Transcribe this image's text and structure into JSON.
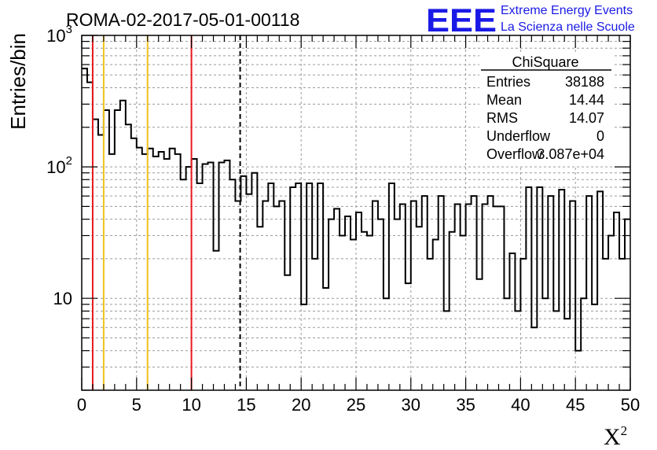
{
  "header": {
    "run_title": "ROMA-02-2017-05-01-00118",
    "logo_text": "EEE",
    "org_line1": "Extreme Energy Events",
    "org_line2": "La Scienza nelle Scuole"
  },
  "stats_box": {
    "title": "ChiSquare",
    "rows": [
      {
        "label": "Entries",
        "value": "38188"
      },
      {
        "label": "Mean",
        "value": "14.44"
      },
      {
        "label": "RMS",
        "value": "14.07"
      },
      {
        "label": "Underflow",
        "value": "0"
      },
      {
        "label": "Overflow",
        "value": "3.087e+04"
      }
    ]
  },
  "colors": {
    "histogram": "#000000",
    "red_line": "#e8191c",
    "yellow_line": "#f2c21b",
    "grid": "#9a9a9a",
    "logo": "#1a1ae6"
  },
  "chart_data": {
    "type": "histogram",
    "title": "ROMA-02-2017-05-01-00118",
    "xlabel": "X",
    "xlabel_superscript": "2",
    "ylabel": "Entries/bin",
    "xlim": [
      0,
      50
    ],
    "ylim": [
      2,
      1000
    ],
    "y_scale": "log",
    "grid": true,
    "x_ticks": [
      0,
      5,
      10,
      15,
      20,
      25,
      30,
      35,
      40,
      45,
      50
    ],
    "x_tick_labels": [
      "0",
      "5",
      "10",
      "15",
      "20",
      "25",
      "30",
      "35",
      "40",
      "45",
      "50"
    ],
    "y_tick_labels": [
      {
        "value": 10,
        "base": "10",
        "exp": ""
      },
      {
        "value": 100,
        "base": "10",
        "exp": "2"
      },
      {
        "value": 1000,
        "base": "10",
        "exp": "3"
      }
    ],
    "bin_width": 0.5,
    "bin_counts": [
      560,
      440,
      230,
      175,
      270,
      125,
      270,
      320,
      210,
      165,
      140,
      125,
      138,
      120,
      130,
      115,
      138,
      125,
      80,
      100,
      115,
      75,
      105,
      108,
      23,
      108,
      112,
      80,
      55,
      85,
      62,
      90,
      35,
      55,
      75,
      50,
      55,
      15,
      70,
      75,
      9,
      75,
      20,
      75,
      12,
      40,
      48,
      30,
      42,
      28,
      45,
      32,
      30,
      55,
      40,
      10,
      75,
      40,
      52,
      13,
      55,
      35,
      60,
      20,
      28,
      60,
      8,
      32,
      52,
      30,
      52,
      60,
      14,
      52,
      60,
      50,
      50,
      10,
      22,
      8,
      20,
      70,
      6,
      70,
      10,
      60,
      8,
      67,
      7,
      55,
      4,
      10,
      60,
      9,
      65,
      20,
      30,
      45,
      20,
      40
    ],
    "markers": [
      {
        "x": 1,
        "color": "red",
        "style": "solid"
      },
      {
        "x": 2,
        "color": "yellow",
        "style": "solid"
      },
      {
        "x": 6,
        "color": "yellow",
        "style": "solid"
      },
      {
        "x": 10,
        "color": "red",
        "style": "solid"
      },
      {
        "x": 14.44,
        "color": "black",
        "style": "dashed"
      }
    ],
    "stats": {
      "entries": 38188,
      "mean": 14.44,
      "rms": 14.07,
      "underflow": 0,
      "overflow": 30870
    }
  }
}
